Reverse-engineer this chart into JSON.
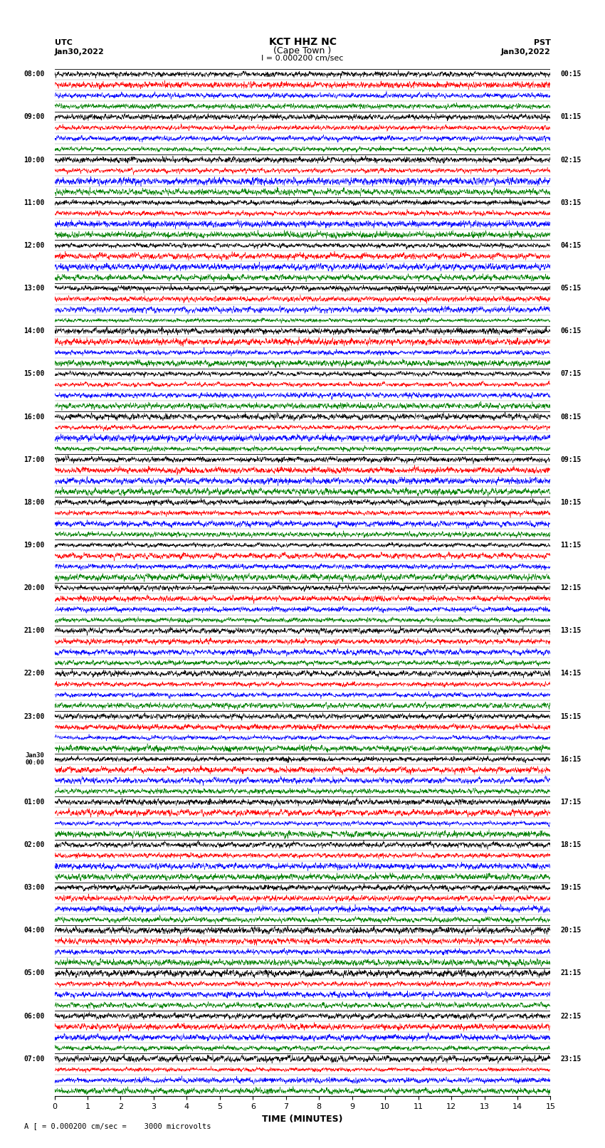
{
  "title_line1": "KCT HHZ NC",
  "title_line2": "(Cape Town )",
  "scale_label": "I = 0.000200 cm/sec",
  "footer_label": "A [ = 0.000200 cm/sec =    3000 microvolts",
  "utc_label": "UTC",
  "utc_date": "Jan30,2022",
  "pst_label": "PST",
  "pst_date": "Jan30,2022",
  "xlabel": "TIME (MINUTES)",
  "left_times_utc": [
    "08:00",
    "09:00",
    "10:00",
    "11:00",
    "12:00",
    "13:00",
    "14:00",
    "15:00",
    "16:00",
    "17:00",
    "18:00",
    "19:00",
    "20:00",
    "21:00",
    "22:00",
    "23:00",
    "Jan30\n00:00",
    "01:00",
    "02:00",
    "03:00",
    "04:00",
    "05:00",
    "06:00",
    "07:00"
  ],
  "right_times_pst": [
    "00:15",
    "01:15",
    "02:15",
    "03:15",
    "04:15",
    "05:15",
    "06:15",
    "07:15",
    "08:15",
    "09:15",
    "10:15",
    "11:15",
    "12:15",
    "13:15",
    "14:15",
    "15:15",
    "16:15",
    "17:15",
    "18:15",
    "19:15",
    "20:15",
    "21:15",
    "22:15",
    "23:15"
  ],
  "num_rows": 96,
  "traces_per_hour": 4,
  "total_minutes": 15,
  "colors": [
    "black",
    "red",
    "blue",
    "green"
  ],
  "background_color": "white",
  "fig_width": 8.5,
  "fig_height": 16.13,
  "dpi": 100
}
